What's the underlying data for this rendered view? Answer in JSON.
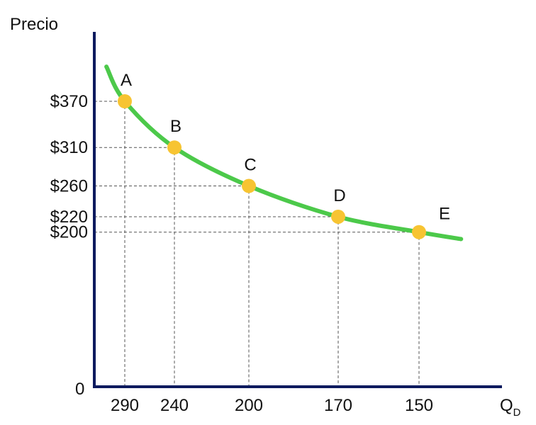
{
  "chart_data": {
    "type": "line",
    "title": "",
    "ylabel": "Precio",
    "xlabel_main": "Q",
    "xlabel_sub": "D",
    "origin_label": "0",
    "grid": false,
    "guides": "dashed",
    "points": [
      {
        "name": "A",
        "price": 370,
        "quantity": 290,
        "price_label": "$370",
        "quantity_label": "290"
      },
      {
        "name": "B",
        "price": 310,
        "quantity": 240,
        "price_label": "$310",
        "quantity_label": "240"
      },
      {
        "name": "C",
        "price": 260,
        "quantity": 200,
        "price_label": "$260",
        "quantity_label": "200"
      },
      {
        "name": "D",
        "price": 220,
        "quantity": 170,
        "price_label": "$220",
        "quantity_label": "170"
      },
      {
        "name": "E",
        "price": 200,
        "quantity": 150,
        "price_label": "$200",
        "quantity_label": "150"
      }
    ],
    "colors": {
      "curve": "#4cc94a",
      "point": "#f7c432",
      "axis": "#0c1a5e",
      "guide": "#555555",
      "text": "#111111"
    }
  }
}
